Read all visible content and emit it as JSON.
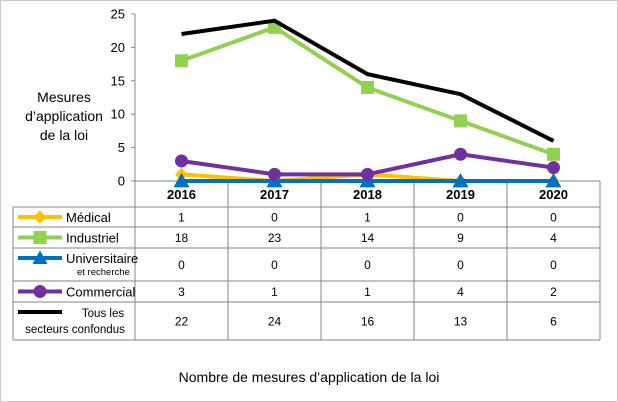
{
  "chart_data": {
    "type": "line",
    "title": "",
    "ylabel_lines": [
      "Mesures",
      "d’application",
      "de la loi"
    ],
    "xlabel": "Nombre de mesures d’application de la loi",
    "categories": [
      "2016",
      "2017",
      "2018",
      "2019",
      "2020"
    ],
    "ylim": [
      0,
      25
    ],
    "yticks": [
      "0",
      "5",
      "10",
      "15",
      "20",
      "25"
    ],
    "grid": false,
    "legend": "data-table-left",
    "series": [
      {
        "name": "Médical",
        "name_sub": "",
        "color": "#FFC000",
        "marker": "diamond",
        "values": [
          1,
          0,
          1,
          0,
          0
        ]
      },
      {
        "name": "Industriel",
        "name_sub": "",
        "color": "#92D050",
        "marker": "square",
        "values": [
          18,
          23,
          14,
          9,
          4
        ]
      },
      {
        "name": "Universitaire",
        "name_sub": "et recherche",
        "color": "#0070C0",
        "marker": "triangle",
        "values": [
          0,
          0,
          0,
          0,
          0
        ]
      },
      {
        "name": "Commercial",
        "name_sub": "",
        "color": "#7030A0",
        "marker": "circle",
        "values": [
          3,
          1,
          1,
          4,
          2
        ]
      },
      {
        "name": "Tous les",
        "name_sub": "secteurs confondus",
        "color": "#000000",
        "marker": "none",
        "values": [
          22,
          24,
          16,
          13,
          6
        ]
      }
    ]
  }
}
